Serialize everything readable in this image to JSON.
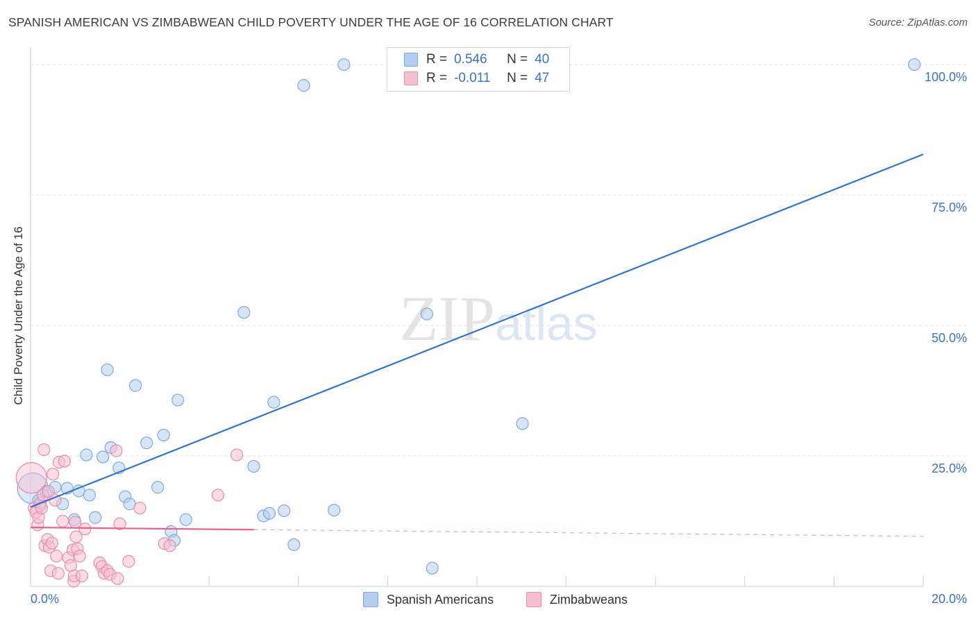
{
  "header": {
    "title": "SPANISH AMERICAN VS ZIMBABWEAN CHILD POVERTY UNDER THE AGE OF 16 CORRELATION CHART",
    "source": "Source: ZipAtlas.com"
  },
  "colors": {
    "blue_fill": "#b4cdf0",
    "blue_stroke": "#7ea8e0",
    "blue_line": "#2f74d0",
    "pink_fill": "#f6bfd0",
    "pink_stroke": "#e98aab",
    "pink_line": "#e8638f",
    "tick_text": "#3a72c4",
    "grid": "#e2e2e2"
  },
  "legend": {
    "rows": [
      {
        "r_label": "R =",
        "r_value": "0.546",
        "n_label": "N =",
        "n_value": "40"
      },
      {
        "r_label": "R =",
        "r_value": "-0.011",
        "n_label": "N =",
        "n_value": "47"
      }
    ],
    "series_names": [
      "Spanish Americans",
      "Zimbabweans"
    ]
  },
  "chart_data": {
    "type": "scatter",
    "title": "SPANISH AMERICAN VS ZIMBABWEAN CHILD POVERTY UNDER THE AGE OF 16 CORRELATION CHART",
    "xlabel": "",
    "ylabel": "Child Poverty Under the Age of 16",
    "xlim": [
      0,
      20
    ],
    "ylim": [
      0,
      102
    ],
    "x_tick_labels": [
      "0.0%",
      "20.0%"
    ],
    "y_ticks": [
      25,
      50,
      75,
      100
    ],
    "y_tick_labels": [
      "25.0%",
      "50.0%",
      "75.0%",
      "100.0%"
    ],
    "grid": true,
    "watermark": "ZIPatlas",
    "series": [
      {
        "name": "Spanish Americans",
        "color": "blue",
        "R": 0.546,
        "N": 40,
        "trend": {
          "x0": 0.0,
          "y0": 15.2,
          "x1": 20.0,
          "y1": 82.8,
          "solid_to": 20.0
        },
        "points": [
          {
            "x": 0.05,
            "y": 18.8,
            "big": true
          },
          {
            "x": 0.18,
            "y": 16.5
          },
          {
            "x": 0.22,
            "y": 15.5
          },
          {
            "x": 0.35,
            "y": 18.2
          },
          {
            "x": 0.55,
            "y": 19.0
          },
          {
            "x": 0.72,
            "y": 15.8
          },
          {
            "x": 0.82,
            "y": 18.8
          },
          {
            "x": 0.98,
            "y": 12.8
          },
          {
            "x": 1.08,
            "y": 18.3
          },
          {
            "x": 1.25,
            "y": 25.2
          },
          {
            "x": 1.32,
            "y": 17.5
          },
          {
            "x": 1.45,
            "y": 13.2
          },
          {
            "x": 1.62,
            "y": 24.8
          },
          {
            "x": 1.72,
            "y": 41.5
          },
          {
            "x": 1.8,
            "y": 26.6
          },
          {
            "x": 1.98,
            "y": 22.7
          },
          {
            "x": 2.12,
            "y": 17.2
          },
          {
            "x": 2.22,
            "y": 15.8
          },
          {
            "x": 2.35,
            "y": 38.5
          },
          {
            "x": 2.6,
            "y": 27.5
          },
          {
            "x": 2.85,
            "y": 19.0
          },
          {
            "x": 2.98,
            "y": 29.0
          },
          {
            "x": 3.15,
            "y": 10.5
          },
          {
            "x": 3.22,
            "y": 8.8
          },
          {
            "x": 3.3,
            "y": 35.7
          },
          {
            "x": 3.48,
            "y": 12.8
          },
          {
            "x": 4.78,
            "y": 52.5
          },
          {
            "x": 5.0,
            "y": 23.0
          },
          {
            "x": 5.22,
            "y": 13.5
          },
          {
            "x": 5.35,
            "y": 14.0
          },
          {
            "x": 5.45,
            "y": 35.3
          },
          {
            "x": 5.68,
            "y": 14.5
          },
          {
            "x": 5.9,
            "y": 8.0
          },
          {
            "x": 6.12,
            "y": 96.0
          },
          {
            "x": 6.8,
            "y": 14.6
          },
          {
            "x": 7.02,
            "y": 100.0
          },
          {
            "x": 8.88,
            "y": 52.2
          },
          {
            "x": 9.0,
            "y": 3.5
          },
          {
            "x": 11.02,
            "y": 31.2
          },
          {
            "x": 19.8,
            "y": 100.0
          }
        ]
      },
      {
        "name": "Zimbabweans",
        "color": "pink",
        "R": -0.011,
        "N": 47,
        "trend": {
          "x0": 0.0,
          "y0": 11.3,
          "x1": 20.0,
          "y1": 9.6,
          "solid_to": 5.0
        },
        "points": [
          {
            "x": 0.02,
            "y": 20.8,
            "big": true
          },
          {
            "x": 0.08,
            "y": 15.0
          },
          {
            "x": 0.12,
            "y": 14.2
          },
          {
            "x": 0.16,
            "y": 11.8
          },
          {
            "x": 0.18,
            "y": 13.2
          },
          {
            "x": 0.22,
            "y": 16.0
          },
          {
            "x": 0.25,
            "y": 15.0
          },
          {
            "x": 0.28,
            "y": 17.5
          },
          {
            "x": 0.32,
            "y": 7.8
          },
          {
            "x": 0.3,
            "y": 26.2
          },
          {
            "x": 0.38,
            "y": 9.0
          },
          {
            "x": 0.42,
            "y": 7.5
          },
          {
            "x": 0.45,
            "y": 3.0
          },
          {
            "x": 0.48,
            "y": 8.3
          },
          {
            "x": 0.5,
            "y": 21.5
          },
          {
            "x": 0.55,
            "y": 16.5
          },
          {
            "x": 0.58,
            "y": 5.8
          },
          {
            "x": 0.62,
            "y": 2.5
          },
          {
            "x": 0.64,
            "y": 23.8
          },
          {
            "x": 0.72,
            "y": 12.5
          },
          {
            "x": 0.76,
            "y": 24.0
          },
          {
            "x": 0.85,
            "y": 5.5
          },
          {
            "x": 0.9,
            "y": 4.0
          },
          {
            "x": 0.95,
            "y": 7.0
          },
          {
            "x": 0.97,
            "y": 1.0
          },
          {
            "x": 0.98,
            "y": 2.0
          },
          {
            "x": 1.0,
            "y": 12.3
          },
          {
            "x": 1.02,
            "y": 9.5
          },
          {
            "x": 1.05,
            "y": 7.2
          },
          {
            "x": 1.1,
            "y": 5.8
          },
          {
            "x": 1.15,
            "y": 2.0
          },
          {
            "x": 1.22,
            "y": 11.0
          },
          {
            "x": 1.55,
            "y": 4.5
          },
          {
            "x": 1.6,
            "y": 3.8
          },
          {
            "x": 1.65,
            "y": 2.5
          },
          {
            "x": 1.72,
            "y": 3.0
          },
          {
            "x": 1.78,
            "y": 2.3
          },
          {
            "x": 1.95,
            "y": 1.5
          },
          {
            "x": 1.92,
            "y": 26.0
          },
          {
            "x": 2.0,
            "y": 12.0
          },
          {
            "x": 2.2,
            "y": 4.8
          },
          {
            "x": 2.45,
            "y": 15.0
          },
          {
            "x": 3.0,
            "y": 8.2
          },
          {
            "x": 3.12,
            "y": 7.8
          },
          {
            "x": 4.2,
            "y": 17.5
          },
          {
            "x": 4.62,
            "y": 25.2
          },
          {
            "x": 0.4,
            "y": 18.2
          }
        ]
      }
    ]
  }
}
